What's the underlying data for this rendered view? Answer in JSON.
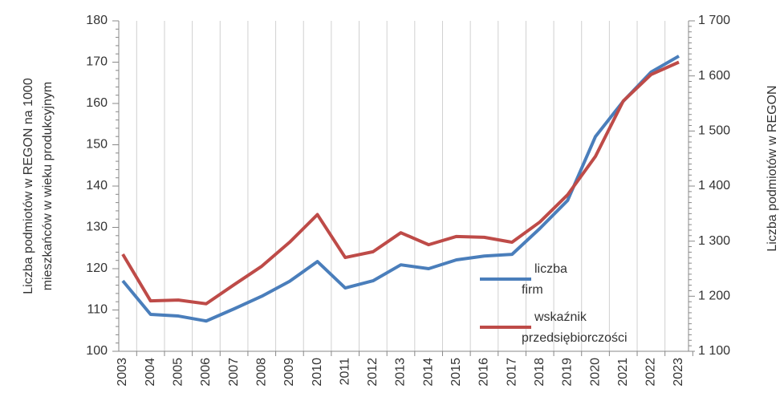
{
  "chart_data": {
    "type": "line",
    "categories": [
      "2003",
      "2004",
      "2005",
      "2006",
      "2007",
      "2008",
      "2009",
      "2010",
      "2011",
      "2012",
      "2013",
      "2014",
      "2015",
      "2016",
      "2017",
      "2018",
      "2019",
      "2020",
      "2021",
      "2022",
      "2023"
    ],
    "series": [
      {
        "name": "liczba firm",
        "color": "#4a7ebb",
        "axis": "y2",
        "values": [
          1228,
          1167,
          1164,
          1155,
          1177,
          1200,
          1227,
          1263,
          1215,
          1228,
          1257,
          1250,
          1266,
          1273,
          1276,
          1323,
          1374,
          1490,
          1554,
          1607,
          1636
        ]
      },
      {
        "name": "wskaźnik przedsiębiorczości",
        "color": "#be4b48",
        "values": [
          123.5,
          112.2,
          112.4,
          111.5,
          116.1,
          120.6,
          126.4,
          133.1,
          122.7,
          124.1,
          128.7,
          125.8,
          127.8,
          127.6,
          126.4,
          131.3,
          137.9,
          147.2,
          160.6,
          167,
          170
        ]
      }
    ],
    "ylabel": [
      "Liczba podmiotów  w REGON na 1000",
      "mieszkańców w wieku produkcyjnym"
    ],
    "y2label": "Liczba podmiotów w REGON",
    "ylim": [
      100,
      180
    ],
    "yticks": [
      100,
      110,
      120,
      130,
      140,
      150,
      160,
      170,
      180
    ],
    "y2lim": [
      1100,
      1700
    ],
    "y2ticks": [
      {
        "value": 1100,
        "label": "1 100"
      },
      {
        "value": 1200,
        "label": "1 200"
      },
      {
        "value": 1300,
        "label": "1 300"
      },
      {
        "value": 1400,
        "label": "1 400"
      },
      {
        "value": 1500,
        "label": "1 500"
      },
      {
        "value": 1600,
        "label": "1 600"
      },
      {
        "value": 1700,
        "label": "1 700"
      }
    ],
    "grid": true
  }
}
